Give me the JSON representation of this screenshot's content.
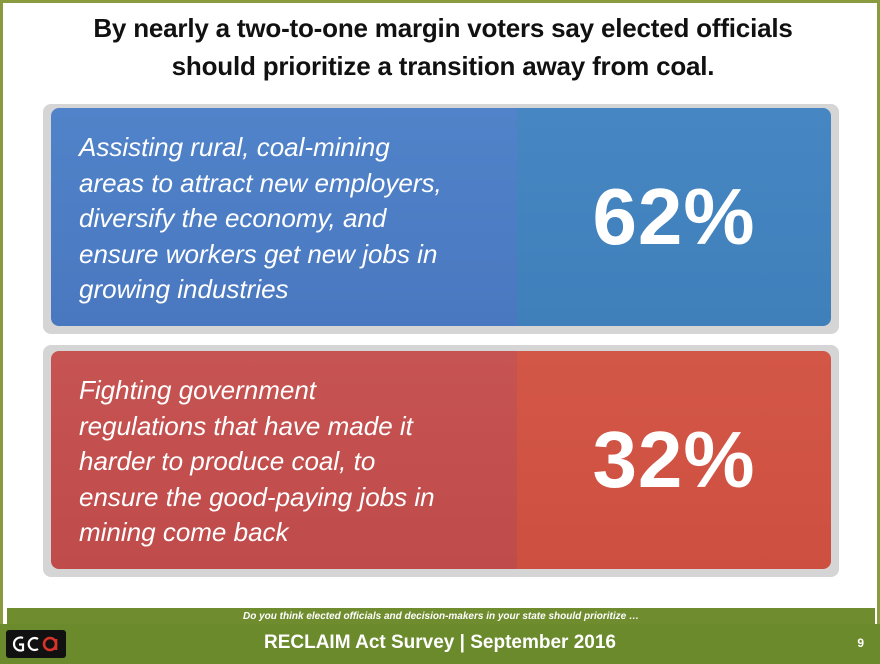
{
  "title": {
    "line1": "By nearly a two-to-one margin voters say elected officials",
    "line2": "should prioritize a transition away from coal."
  },
  "options": [
    {
      "lines": [
        "Assisting rural, coal-mining",
        "areas to attract new employers,",
        "diversify the economy, and",
        "ensure  workers get new jobs in",
        "growing industries"
      ],
      "percent": "62%",
      "color": "#4a78c0"
    },
    {
      "lines": [
        "Fighting government",
        "regulations that have made it",
        "harder to produce coal, to",
        "ensure the good-paying jobs in",
        "mining come back"
      ],
      "percent": "32%",
      "color": "#c65452"
    }
  ],
  "question": "Do you think elected officials and decision-makers in your state should prioritize …",
  "footer": {
    "logo_icon": "gqa-logo-icon",
    "title": "RECLAIM Act Survey | September 2016",
    "page": "9"
  },
  "colors": {
    "accent_green": "#6a8a2c",
    "blue": "#4686c2",
    "red": "#cd4f40"
  }
}
